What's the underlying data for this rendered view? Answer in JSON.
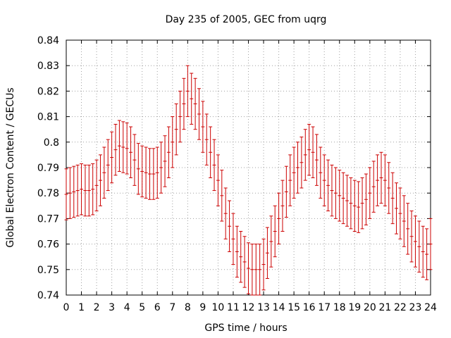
{
  "chart_data": {
    "type": "scatter",
    "title": "Day 235 of 2005, GEC from uqrg",
    "xlabel": "GPS time / hours",
    "ylabel": "Global Electron Content / GECUs",
    "xlim": [
      0,
      24
    ],
    "ylim": [
      0.74,
      0.84
    ],
    "x_ticks": [
      "0",
      "1",
      "2",
      "3",
      "4",
      "5",
      "6",
      "7",
      "8",
      "9",
      "10",
      "11",
      "12",
      "13",
      "14",
      "15",
      "16",
      "17",
      "18",
      "19",
      "20",
      "21",
      "22",
      "23",
      "24"
    ],
    "y_ticks": [
      "0.74",
      "0.75",
      "0.76",
      "0.77",
      "0.78",
      "0.79",
      "0.8",
      "0.81",
      "0.82",
      "0.83",
      "0.84"
    ],
    "grid": true,
    "series_color": "#cc0000",
    "error_bar": 0.01,
    "series": [
      {
        "x": [
          0,
          0.25,
          0.5,
          0.75,
          1,
          1.25,
          1.5,
          1.75,
          2,
          2.25,
          2.5,
          2.75,
          3,
          3.25,
          3.5,
          3.75,
          4,
          4.25,
          4.5,
          4.75,
          5,
          5.25,
          5.5,
          5.75,
          6,
          6.25,
          6.5,
          6.75,
          7,
          7.25,
          7.5,
          7.75,
          8,
          8.25,
          8.5,
          8.75,
          9,
          9.25,
          9.5,
          9.75,
          10,
          10.25,
          10.5,
          10.75,
          11,
          11.25,
          11.5,
          11.75,
          12,
          12.25,
          12.5,
          12.75,
          13,
          13.25,
          13.5,
          13.75,
          14,
          14.25,
          14.5,
          14.75,
          15,
          15.25,
          15.5,
          15.75,
          16,
          16.25,
          16.5,
          16.75,
          17,
          17.25,
          17.5,
          17.75,
          18,
          18.25,
          18.5,
          18.75,
          19,
          19.25,
          19.5,
          19.75,
          20,
          20.25,
          20.5,
          20.75,
          21,
          21.25,
          21.5,
          21.75,
          22,
          22.25,
          22.5,
          22.75,
          23,
          23.25,
          23.5,
          23.75,
          24
        ],
        "y": [
          0.7795,
          0.78,
          0.7805,
          0.781,
          0.7815,
          0.781,
          0.781,
          0.7815,
          0.783,
          0.785,
          0.788,
          0.791,
          0.794,
          0.797,
          0.7985,
          0.798,
          0.7975,
          0.796,
          0.793,
          0.7895,
          0.7885,
          0.788,
          0.7875,
          0.7875,
          0.788,
          0.79,
          0.7925,
          0.796,
          0.8,
          0.805,
          0.81,
          0.815,
          0.82,
          0.817,
          0.815,
          0.811,
          0.806,
          0.801,
          0.796,
          0.791,
          0.785,
          0.779,
          0.772,
          0.767,
          0.762,
          0.757,
          0.755,
          0.753,
          0.7505,
          0.75,
          0.75,
          0.75,
          0.752,
          0.7565,
          0.761,
          0.765,
          0.77,
          0.775,
          0.7805,
          0.785,
          0.788,
          0.79,
          0.792,
          0.795,
          0.797,
          0.796,
          0.793,
          0.788,
          0.785,
          0.783,
          0.781,
          0.78,
          0.779,
          0.778,
          0.777,
          0.776,
          0.775,
          0.7745,
          0.776,
          0.7775,
          0.78,
          0.7825,
          0.785,
          0.786,
          0.785,
          0.782,
          0.778,
          0.774,
          0.772,
          0.769,
          0.766,
          0.763,
          0.761,
          0.759,
          0.757,
          0.756,
          0.76
        ]
      }
    ]
  }
}
